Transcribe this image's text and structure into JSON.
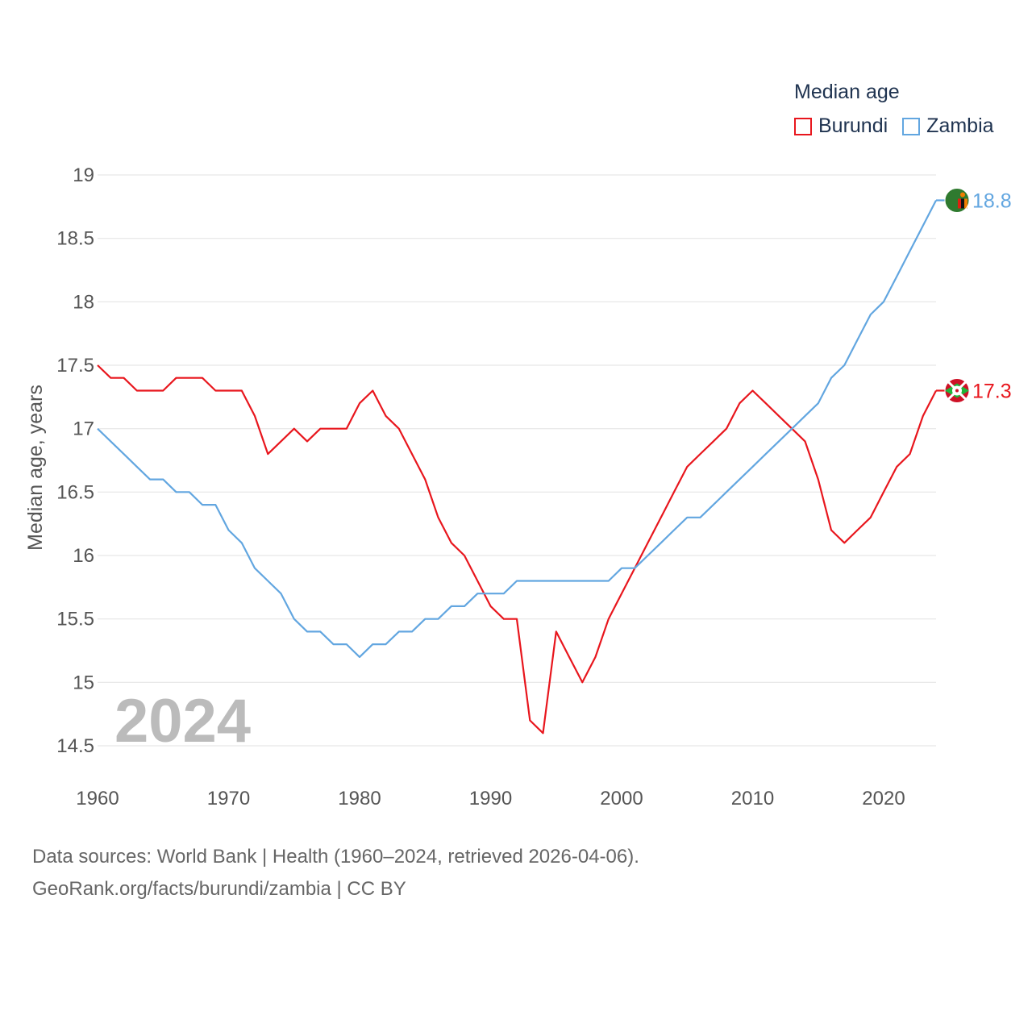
{
  "legend": {
    "title": "Median age",
    "items": [
      {
        "label": "Burundi",
        "color": "#e8161d"
      },
      {
        "label": "Zambia",
        "color": "#62a6e0"
      }
    ]
  },
  "year_watermark": "2024",
  "source": {
    "line1": "Data sources: World Bank | Health (1960–2024, retrieved 2026-04-06).",
    "line2": "GeoRank.org/facts/burundi/zambia | CC BY"
  },
  "chart_data": {
    "type": "line",
    "title": "Median age",
    "xlabel": "",
    "ylabel": "Median age, years",
    "xlim": [
      1960,
      2024
    ],
    "ylim": [
      14.5,
      19
    ],
    "x_ticks": [
      1960,
      1970,
      1980,
      1990,
      2000,
      2010,
      2020
    ],
    "y_ticks": [
      14.5,
      15,
      15.5,
      16,
      16.5,
      17,
      17.5,
      18,
      18.5,
      19
    ],
    "x_tick_labels": [
      "1960",
      "1970",
      "1980",
      "1990",
      "2000",
      "2010",
      "2020"
    ],
    "y_tick_labels": [
      "14.5",
      "15",
      "15.5",
      "16",
      "16.5",
      "17",
      "17.5",
      "18",
      "18.5",
      "19"
    ],
    "grid": true,
    "legend_position": "top-right",
    "x": [
      1960,
      1961,
      1962,
      1963,
      1964,
      1965,
      1966,
      1967,
      1968,
      1969,
      1970,
      1971,
      1972,
      1973,
      1974,
      1975,
      1976,
      1977,
      1978,
      1979,
      1980,
      1981,
      1982,
      1983,
      1984,
      1985,
      1986,
      1987,
      1988,
      1989,
      1990,
      1991,
      1992,
      1993,
      1994,
      1995,
      1996,
      1997,
      1998,
      1999,
      2000,
      2001,
      2002,
      2003,
      2004,
      2005,
      2006,
      2007,
      2008,
      2009,
      2010,
      2011,
      2012,
      2013,
      2014,
      2015,
      2016,
      2017,
      2018,
      2019,
      2020,
      2021,
      2022,
      2023,
      2024
    ],
    "series": [
      {
        "name": "Burundi",
        "color": "#e8161d",
        "end_label": "17.3",
        "values": [
          17.5,
          17.4,
          17.4,
          17.3,
          17.3,
          17.3,
          17.4,
          17.4,
          17.4,
          17.3,
          17.3,
          17.3,
          17.1,
          16.8,
          16.9,
          17.0,
          16.9,
          17.0,
          17.0,
          17.0,
          17.2,
          17.3,
          17.1,
          17.0,
          16.8,
          16.6,
          16.3,
          16.1,
          16.0,
          15.8,
          15.6,
          15.5,
          15.5,
          14.7,
          14.6,
          15.4,
          15.2,
          15.0,
          15.2,
          15.5,
          15.7,
          15.9,
          16.1,
          16.3,
          16.5,
          16.7,
          16.8,
          16.9,
          17.0,
          17.2,
          17.3,
          17.2,
          17.1,
          17.0,
          16.9,
          16.6,
          16.2,
          16.1,
          16.2,
          16.3,
          16.5,
          16.7,
          16.8,
          17.1,
          17.3
        ]
      },
      {
        "name": "Zambia",
        "color": "#62a6e0",
        "end_label": "18.8",
        "values": [
          17.0,
          16.9,
          16.8,
          16.7,
          16.6,
          16.6,
          16.5,
          16.5,
          16.4,
          16.4,
          16.2,
          16.1,
          15.9,
          15.8,
          15.7,
          15.5,
          15.4,
          15.4,
          15.3,
          15.3,
          15.2,
          15.3,
          15.3,
          15.4,
          15.4,
          15.5,
          15.5,
          15.6,
          15.6,
          15.7,
          15.7,
          15.7,
          15.8,
          15.8,
          15.8,
          15.8,
          15.8,
          15.8,
          15.8,
          15.8,
          15.9,
          15.9,
          16.0,
          16.1,
          16.2,
          16.3,
          16.3,
          16.4,
          16.5,
          16.6,
          16.7,
          16.8,
          16.9,
          17.0,
          17.1,
          17.2,
          17.4,
          17.5,
          17.7,
          17.9,
          18.0,
          18.2,
          18.4,
          18.6,
          18.8
        ]
      }
    ]
  }
}
